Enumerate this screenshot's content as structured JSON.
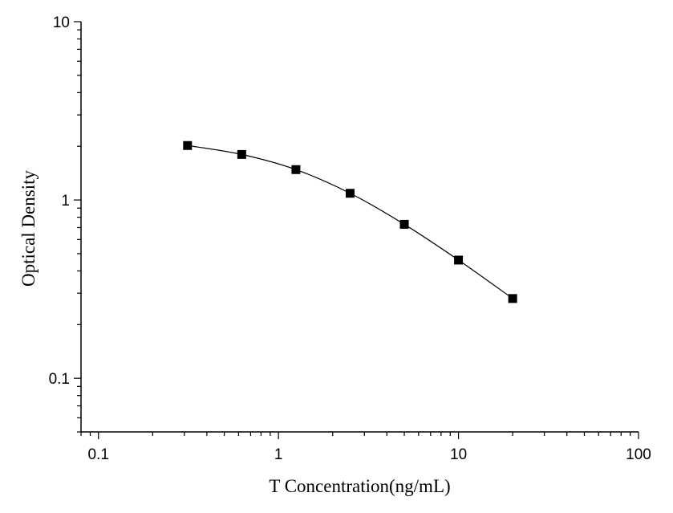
{
  "chart_data": {
    "type": "line",
    "xlabel": "T Concentration(ng/mL)",
    "ylabel": "Optical Density",
    "x_scale": "log",
    "y_scale": "log",
    "xlim": [
      0.08,
      100
    ],
    "ylim": [
      0.05,
      10
    ],
    "x_ticks": [
      {
        "value": 0.1,
        "label": "0.1"
      },
      {
        "value": 1,
        "label": "1"
      },
      {
        "value": 10,
        "label": "10"
      },
      {
        "value": 100,
        "label": "100"
      }
    ],
    "y_ticks": [
      {
        "value": 0.1,
        "label": "0.1"
      },
      {
        "value": 1,
        "label": "1"
      },
      {
        "value": 10,
        "label": "10"
      }
    ],
    "grid": false,
    "marker": "square",
    "series": [
      {
        "x": [
          0.3125,
          0.625,
          1.25,
          2.5,
          5,
          10,
          20
        ],
        "y": [
          2.02,
          1.8,
          1.48,
          1.09,
          0.73,
          0.46,
          0.28
        ]
      }
    ],
    "colors": {
      "line": "#000000",
      "marker": "#000000",
      "axis": "#000000"
    }
  }
}
